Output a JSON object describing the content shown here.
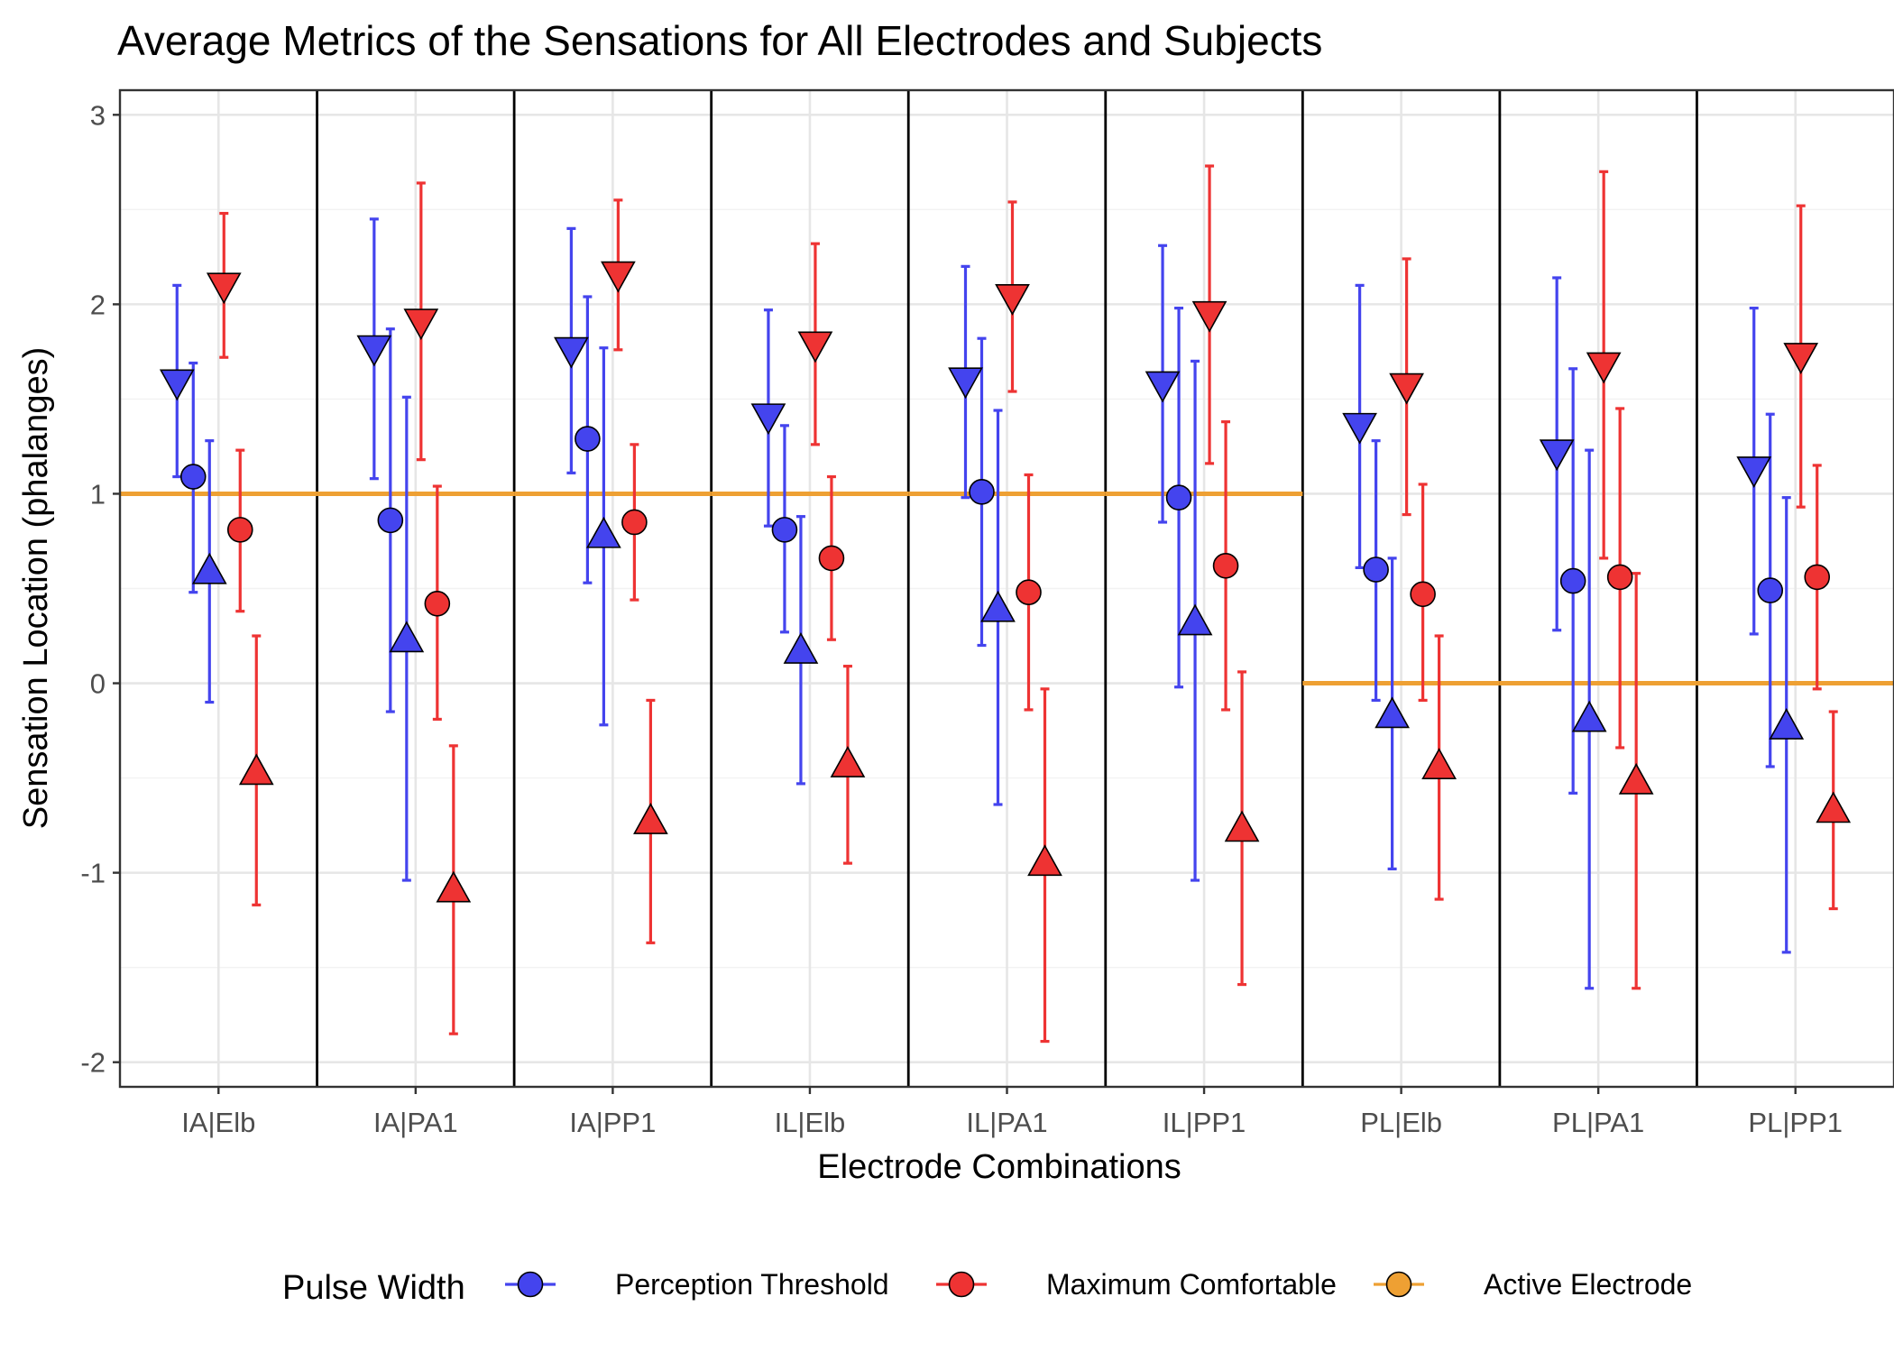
{
  "chart_data": {
    "type": "scatter",
    "title": "Average Metrics of the Sensations for All Electrodes and Subjects",
    "xlabel": "Electrode Combinations",
    "ylabel": "Sensation Location (phalanges)",
    "categories": [
      "IA|Elb",
      "IA|PA1",
      "IA|PP1",
      "IL|Elb",
      "IL|PA1",
      "IL|PP1",
      "PL|Elb",
      "PL|PA1",
      "PL|PP1"
    ],
    "ylim": [
      -2.13,
      3.13
    ],
    "yticks": [
      -2,
      -1,
      0,
      1,
      2,
      3
    ],
    "ytick_labels": [
      "-2",
      "-1",
      "0",
      "1",
      "2",
      "3"
    ],
    "grid": true,
    "facet_dividers": true,
    "legend": {
      "position": "bottom",
      "title": "Pulse Width",
      "entries": [
        {
          "label": "Perception Threshold",
          "color": "#4444ee"
        },
        {
          "label": "Maximum Comfortable",
          "color": "#ee3333"
        },
        {
          "label": "Active Electrode",
          "color": "#eea033"
        }
      ]
    },
    "active_electrode": {
      "color": "#eea033",
      "values": [
        1,
        1,
        1,
        1,
        1,
        1,
        0,
        0,
        0
      ]
    },
    "series": [
      {
        "name": "Perception Threshold",
        "color": "#4444ee",
        "points": [
          {
            "cat": 0,
            "shape": "triangle-down",
            "y": 1.58,
            "lo": 1.09,
            "hi": 2.1
          },
          {
            "cat": 0,
            "shape": "circle",
            "y": 1.09,
            "lo": 0.48,
            "hi": 1.69
          },
          {
            "cat": 0,
            "shape": "triangle-up",
            "y": 0.6,
            "lo": -0.1,
            "hi": 1.28
          },
          {
            "cat": 1,
            "shape": "triangle-down",
            "y": 1.76,
            "lo": 1.08,
            "hi": 2.45
          },
          {
            "cat": 1,
            "shape": "circle",
            "y": 0.86,
            "lo": -0.15,
            "hi": 1.87
          },
          {
            "cat": 1,
            "shape": "triangle-up",
            "y": 0.24,
            "lo": -1.04,
            "hi": 1.51
          },
          {
            "cat": 2,
            "shape": "triangle-down",
            "y": 1.75,
            "lo": 1.11,
            "hi": 2.4
          },
          {
            "cat": 2,
            "shape": "circle",
            "y": 1.29,
            "lo": 0.53,
            "hi": 2.04
          },
          {
            "cat": 2,
            "shape": "triangle-up",
            "y": 0.79,
            "lo": -0.22,
            "hi": 1.77
          },
          {
            "cat": 3,
            "shape": "triangle-down",
            "y": 1.4,
            "lo": 0.83,
            "hi": 1.97
          },
          {
            "cat": 3,
            "shape": "circle",
            "y": 0.81,
            "lo": 0.27,
            "hi": 1.36
          },
          {
            "cat": 3,
            "shape": "triangle-up",
            "y": 0.18,
            "lo": -0.53,
            "hi": 0.88
          },
          {
            "cat": 4,
            "shape": "triangle-down",
            "y": 1.59,
            "lo": 0.98,
            "hi": 2.2
          },
          {
            "cat": 4,
            "shape": "circle",
            "y": 1.01,
            "lo": 0.2,
            "hi": 1.82
          },
          {
            "cat": 4,
            "shape": "triangle-up",
            "y": 0.4,
            "lo": -0.64,
            "hi": 1.44
          },
          {
            "cat": 5,
            "shape": "triangle-down",
            "y": 1.57,
            "lo": 0.85,
            "hi": 2.31
          },
          {
            "cat": 5,
            "shape": "circle",
            "y": 0.98,
            "lo": -0.02,
            "hi": 1.98
          },
          {
            "cat": 5,
            "shape": "triangle-up",
            "y": 0.33,
            "lo": -1.04,
            "hi": 1.7
          },
          {
            "cat": 6,
            "shape": "triangle-down",
            "y": 1.35,
            "lo": 0.61,
            "hi": 2.1
          },
          {
            "cat": 6,
            "shape": "circle",
            "y": 0.6,
            "lo": -0.09,
            "hi": 1.28
          },
          {
            "cat": 6,
            "shape": "triangle-up",
            "y": -0.16,
            "lo": -0.98,
            "hi": 0.66
          },
          {
            "cat": 7,
            "shape": "triangle-down",
            "y": 1.21,
            "lo": 0.28,
            "hi": 2.14
          },
          {
            "cat": 7,
            "shape": "circle",
            "y": 0.54,
            "lo": -0.58,
            "hi": 1.66
          },
          {
            "cat": 7,
            "shape": "triangle-up",
            "y": -0.18,
            "lo": -1.61,
            "hi": 1.23
          },
          {
            "cat": 8,
            "shape": "triangle-down",
            "y": 1.12,
            "lo": 0.26,
            "hi": 1.98
          },
          {
            "cat": 8,
            "shape": "circle",
            "y": 0.49,
            "lo": -0.44,
            "hi": 1.42
          },
          {
            "cat": 8,
            "shape": "triangle-up",
            "y": -0.22,
            "lo": -1.42,
            "hi": 0.98
          }
        ]
      },
      {
        "name": "Maximum Comfortable",
        "color": "#ee3333",
        "points": [
          {
            "cat": 0,
            "shape": "triangle-down",
            "y": 2.09,
            "lo": 1.72,
            "hi": 2.48
          },
          {
            "cat": 0,
            "shape": "circle",
            "y": 0.81,
            "lo": 0.38,
            "hi": 1.23
          },
          {
            "cat": 0,
            "shape": "triangle-up",
            "y": -0.46,
            "lo": -1.17,
            "hi": 0.25
          },
          {
            "cat": 1,
            "shape": "triangle-down",
            "y": 1.9,
            "lo": 1.18,
            "hi": 2.64
          },
          {
            "cat": 1,
            "shape": "circle",
            "y": 0.42,
            "lo": -0.19,
            "hi": 1.04
          },
          {
            "cat": 1,
            "shape": "triangle-up",
            "y": -1.08,
            "lo": -1.85,
            "hi": -0.33
          },
          {
            "cat": 2,
            "shape": "triangle-down",
            "y": 2.15,
            "lo": 1.76,
            "hi": 2.55
          },
          {
            "cat": 2,
            "shape": "circle",
            "y": 0.85,
            "lo": 0.44,
            "hi": 1.26
          },
          {
            "cat": 2,
            "shape": "triangle-up",
            "y": -0.72,
            "lo": -1.37,
            "hi": -0.09
          },
          {
            "cat": 3,
            "shape": "triangle-down",
            "y": 1.78,
            "lo": 1.26,
            "hi": 2.32
          },
          {
            "cat": 3,
            "shape": "circle",
            "y": 0.66,
            "lo": 0.23,
            "hi": 1.09
          },
          {
            "cat": 3,
            "shape": "triangle-up",
            "y": -0.42,
            "lo": -0.95,
            "hi": 0.09
          },
          {
            "cat": 4,
            "shape": "triangle-down",
            "y": 2.03,
            "lo": 1.54,
            "hi": 2.54
          },
          {
            "cat": 4,
            "shape": "circle",
            "y": 0.48,
            "lo": -0.14,
            "hi": 1.1
          },
          {
            "cat": 4,
            "shape": "triangle-up",
            "y": -0.94,
            "lo": -1.89,
            "hi": -0.03
          },
          {
            "cat": 5,
            "shape": "triangle-down",
            "y": 1.94,
            "lo": 1.16,
            "hi": 2.73
          },
          {
            "cat": 5,
            "shape": "circle",
            "y": 0.62,
            "lo": -0.14,
            "hi": 1.38
          },
          {
            "cat": 5,
            "shape": "triangle-up",
            "y": -0.76,
            "lo": -1.59,
            "hi": 0.06
          },
          {
            "cat": 6,
            "shape": "triangle-down",
            "y": 1.56,
            "lo": 0.89,
            "hi": 2.24
          },
          {
            "cat": 6,
            "shape": "circle",
            "y": 0.47,
            "lo": -0.09,
            "hi": 1.05
          },
          {
            "cat": 6,
            "shape": "triangle-up",
            "y": -0.43,
            "lo": -1.14,
            "hi": 0.25
          },
          {
            "cat": 7,
            "shape": "triangle-down",
            "y": 1.67,
            "lo": 0.66,
            "hi": 2.7
          },
          {
            "cat": 7,
            "shape": "circle",
            "y": 0.56,
            "lo": -0.34,
            "hi": 1.45
          },
          {
            "cat": 7,
            "shape": "triangle-up",
            "y": -0.51,
            "lo": -1.61,
            "hi": 0.58
          },
          {
            "cat": 8,
            "shape": "triangle-down",
            "y": 1.72,
            "lo": 0.93,
            "hi": 2.52
          },
          {
            "cat": 8,
            "shape": "circle",
            "y": 0.56,
            "lo": -0.03,
            "hi": 1.15
          },
          {
            "cat": 8,
            "shape": "triangle-up",
            "y": -0.66,
            "lo": -1.19,
            "hi": -0.15
          }
        ]
      }
    ]
  }
}
